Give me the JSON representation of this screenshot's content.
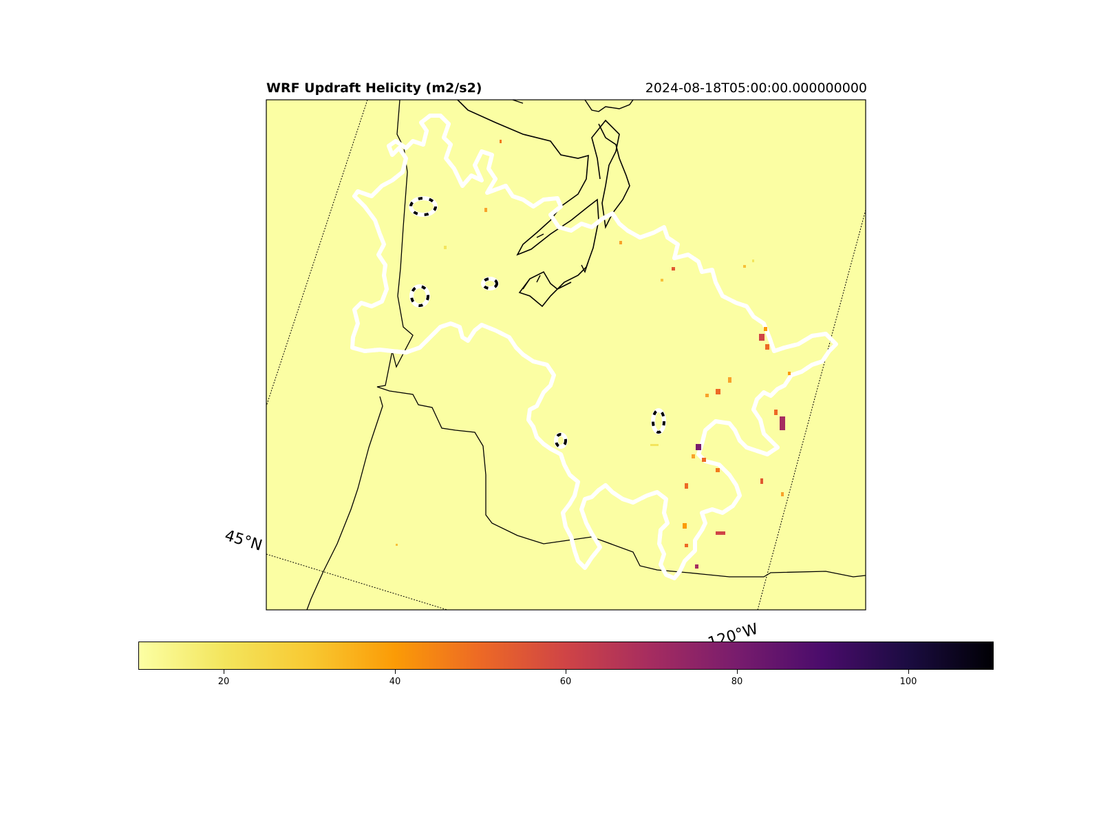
{
  "title": "WRF Updraft Helicity (m2/s2)",
  "valid_time": "2024-08-18T05:00:00.000000000",
  "lat_label": "45°N",
  "lon_label": "120°W",
  "colorbar": {
    "colormap": "inferno_r",
    "range": [
      10,
      110
    ],
    "ticks": [
      "20",
      "40",
      "60",
      "80",
      "100"
    ],
    "colors": [
      "#fcffa4",
      "#f7d13d",
      "#fb9b06",
      "#ed6925",
      "#cf4446",
      "#a52c60",
      "#781c6d",
      "#4a0c6b",
      "#1b0c41",
      "#000004"
    ]
  },
  "map": {
    "background": "#fbfea3",
    "features": [
      "coastline",
      "state-borders",
      "dashed-contour"
    ]
  }
}
